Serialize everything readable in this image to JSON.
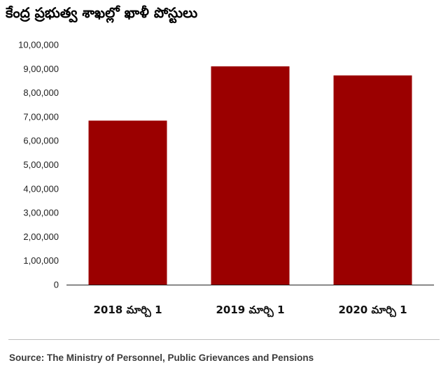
{
  "chart_data": {
    "type": "bar",
    "title": "కేంద్ర ప్రభుత్వ శాఖల్లో ఖాళీ పోస్టులు",
    "categories": [
      "2018 మార్చి 1",
      "2019 మార్చి 1",
      "2020 మార్చి 1"
    ],
    "values": [
      683823,
      910153,
      872243
    ],
    "ylim": [
      0,
      1000000
    ],
    "yticks": [
      0,
      100000,
      200000,
      300000,
      400000,
      500000,
      600000,
      700000,
      800000,
      900000,
      1000000
    ],
    "ytick_labels": [
      "0",
      "1,00,000",
      "2,00,000",
      "3,00,000",
      "4,00,000",
      "5,00,000",
      "6,00,000",
      "7,00,000",
      "8,00,000",
      "9,00,000",
      "10,00,000"
    ],
    "xlabel": "",
    "ylabel": "",
    "grid": false,
    "bar_color": "#9b0000"
  },
  "source": "Source: The Ministry of Personnel, Public Grievances and Pensions"
}
